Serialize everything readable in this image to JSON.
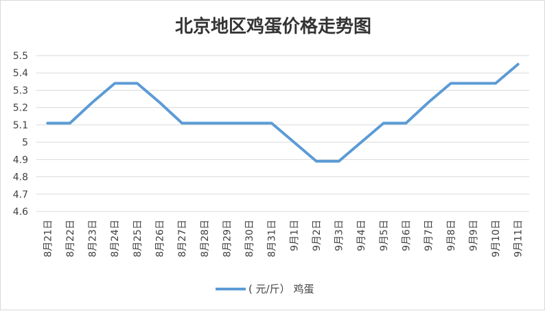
{
  "chart_data": {
    "type": "line",
    "title": "北京地区鸡蛋价格走势图",
    "xlabel": "",
    "ylabel": "",
    "ylim": [
      4.6,
      5.5
    ],
    "yticks": [
      "4.6",
      "4.7",
      "4.8",
      "4.9",
      "5",
      "5.1",
      "5.2",
      "5.3",
      "5.4",
      "5.5"
    ],
    "grid": true,
    "legend_position": "bottom",
    "categories": [
      "8月21日",
      "8月22日",
      "8月23日",
      "8月24日",
      "8月25日",
      "8月26日",
      "8月27日",
      "8月28日",
      "8月29日",
      "8月30日",
      "8月31日",
      "9月1日",
      "9月2日",
      "9月3日",
      "9月4日",
      "9月5日",
      "9月6日",
      "9月7日",
      "9月8日",
      "9月9日",
      "9月10日",
      "9月11日"
    ],
    "series": [
      {
        "name": "( 元/斤） 鸡蛋",
        "color": "#5b9bd5",
        "values": [
          5.11,
          5.11,
          5.23,
          5.34,
          5.34,
          5.23,
          5.11,
          5.11,
          5.11,
          5.11,
          5.11,
          5.0,
          4.89,
          4.89,
          5.0,
          5.11,
          5.11,
          5.23,
          5.34,
          5.34,
          5.34,
          5.45
        ]
      }
    ]
  }
}
